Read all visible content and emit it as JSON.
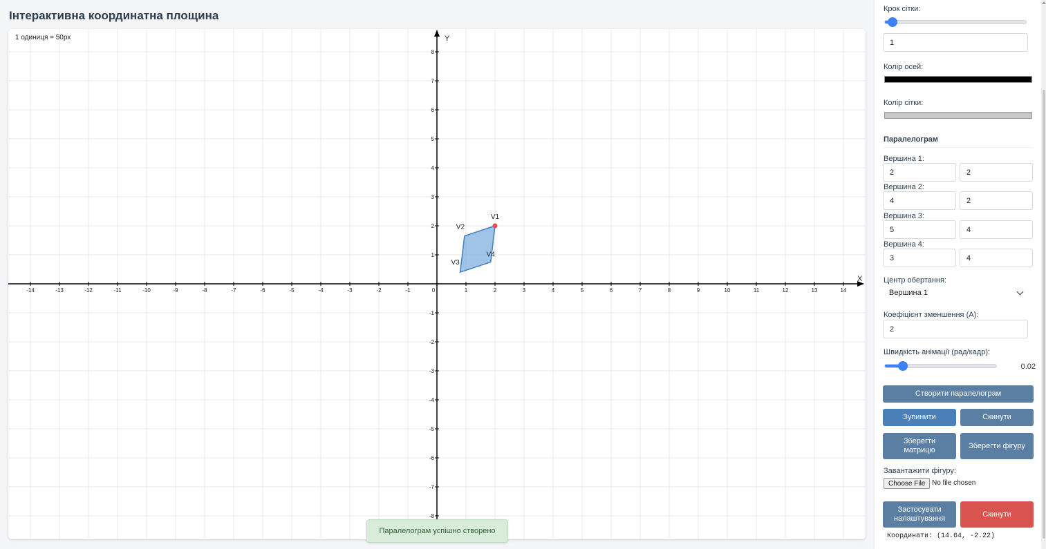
{
  "title": "Інтерактивна координатна площина",
  "canvas": {
    "scale_label": "1 одиниця = 50px",
    "axis_x_label": "X",
    "axis_y_label": "Y",
    "x_ticks": [
      "-14",
      "-13",
      "-12",
      "-11",
      "-10",
      "-9",
      "-8",
      "-7",
      "-6",
      "-5",
      "-4",
      "-3",
      "-2",
      "-1",
      "0",
      "1",
      "2",
      "3",
      "4",
      "5",
      "6",
      "7",
      "8",
      "9",
      "10",
      "11",
      "12",
      "13",
      "14"
    ],
    "y_ticks": [
      "8",
      "7",
      "6",
      "5",
      "4",
      "3",
      "2",
      "1",
      "-1",
      "-2",
      "-3",
      "-4",
      "-5",
      "-6",
      "-7",
      "-8"
    ],
    "axis_color": "#000000",
    "grid_color": "#e8e8e8",
    "shape_fill": "#7fb0e0",
    "shape_stroke": "#3f7fbf",
    "vertex_marker_color": "#e05050",
    "vertices": [
      {
        "label": "V1",
        "x": 2.0,
        "y": 2.0
      },
      {
        "label": "V2",
        "x": 0.95,
        "y": 1.65
      },
      {
        "label": "V3",
        "x": 0.8,
        "y": 0.4
      },
      {
        "label": "V4",
        "x": 1.85,
        "y": 0.75
      }
    ]
  },
  "toast": "Паралелограм успішно створено",
  "panel": {
    "grid_step_label": "Крок сітки:",
    "grid_step_slider": 0.04,
    "grid_step_value": "1",
    "axis_color_label": "Колір осей:",
    "axis_color_value": "#000000",
    "grid_color_label": "Колір сітки:",
    "grid_color_value": "#c8c8c8",
    "section_title": "Паралелограм",
    "vertices": [
      {
        "label": "Вершина 1:",
        "x": "2",
        "y": "2"
      },
      {
        "label": "Вершина 2:",
        "x": "4",
        "y": "2"
      },
      {
        "label": "Вершина 3:",
        "x": "5",
        "y": "4"
      },
      {
        "label": "Вершина 4:",
        "x": "3",
        "y": "4"
      }
    ],
    "rotation_center_label": "Центр обертання:",
    "rotation_center_value": "Вершина 1",
    "scale_factor_label": "Коефіцієнт зменшення (A):",
    "scale_factor_value": "2",
    "speed_label": "Швидкість анімації (рад/кадр):",
    "speed_slider": 0.16,
    "speed_value": "0.02",
    "create_btn": "Створити паралелограм",
    "stop_btn": "Зупинити",
    "reset_btn": "Скинути",
    "save_matrix_btn": "Зберегти матрицю",
    "save_shape_btn": "Зберегти фігуру",
    "load_label": "Завантажити фігуру:",
    "choose_file": "Choose File",
    "no_file": "No file chosen",
    "apply_btn": "Застосувати налаштування",
    "reset2_btn": "Скинути",
    "coords": "Координати: (14.64, -2.22)"
  }
}
